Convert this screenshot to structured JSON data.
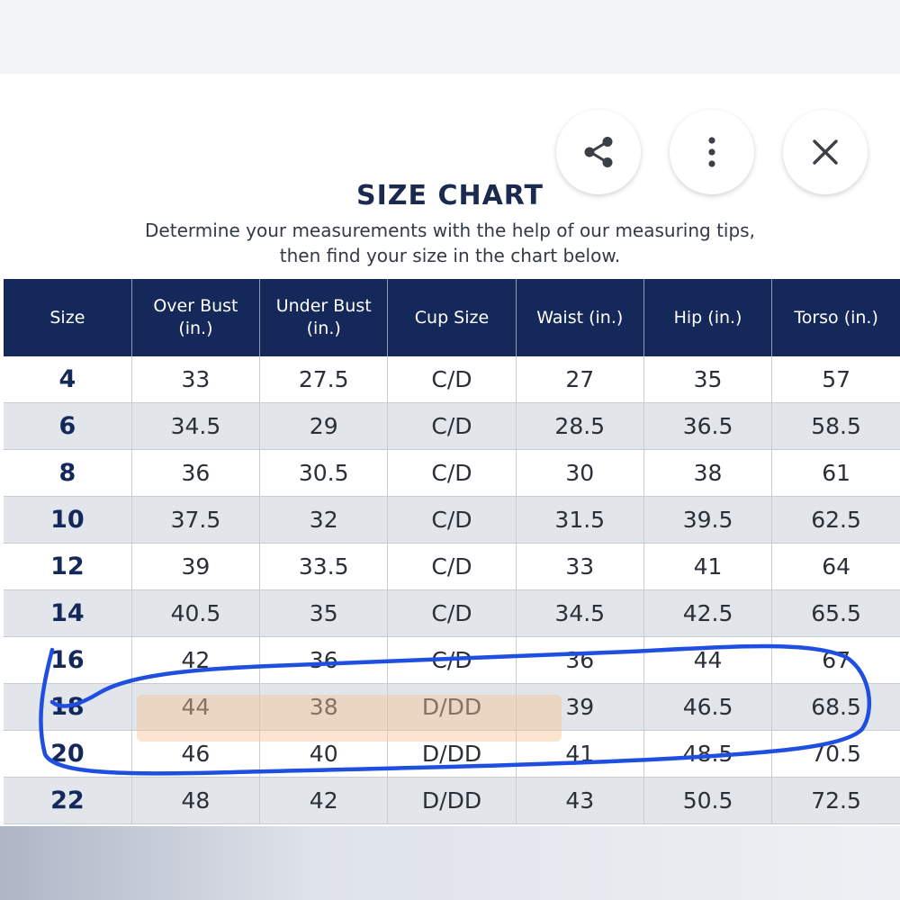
{
  "header": {
    "title": "SIZE CHART",
    "subtitle_line1": "Determine your measurements with the help of our measuring tips,",
    "subtitle_line2": "then find your size in the chart below."
  },
  "toolbar": {
    "share_icon": "share-icon",
    "more_icon": "more-vertical-icon",
    "close_icon": "close-icon"
  },
  "table": {
    "columns": [
      "Size",
      "Over Bust (in.)",
      "Under Bust (in.)",
      "Cup Size",
      "Waist (in.)",
      "Hip (in.)",
      "Torso (in.)"
    ],
    "column_lines": [
      [
        "Size",
        ""
      ],
      [
        "Over Bust",
        "(in.)"
      ],
      [
        "Under Bust",
        "(in.)"
      ],
      [
        "Cup Size",
        ""
      ],
      [
        "Waist (in.)",
        ""
      ],
      [
        "Hip (in.)",
        ""
      ],
      [
        "Torso (in.)",
        ""
      ]
    ],
    "rows": [
      [
        "4",
        "33",
        "27.5",
        "C/D",
        "27",
        "35",
        "57"
      ],
      [
        "6",
        "34.5",
        "29",
        "C/D",
        "28.5",
        "36.5",
        "58.5"
      ],
      [
        "8",
        "36",
        "30.5",
        "C/D",
        "30",
        "38",
        "61"
      ],
      [
        "10",
        "37.5",
        "32",
        "C/D",
        "31.5",
        "39.5",
        "62.5"
      ],
      [
        "12",
        "39",
        "33.5",
        "C/D",
        "33",
        "41",
        "64"
      ],
      [
        "14",
        "40.5",
        "35",
        "C/D",
        "34.5",
        "42.5",
        "65.5"
      ],
      [
        "16",
        "42",
        "36",
        "C/D",
        "36",
        "44",
        "67"
      ],
      [
        "18",
        "44",
        "38",
        "D/DD",
        "39",
        "46.5",
        "68.5"
      ],
      [
        "20",
        "46",
        "40",
        "D/DD",
        "41",
        "48.5",
        "70.5"
      ],
      [
        "22",
        "48",
        "42",
        "D/DD",
        "43",
        "50.5",
        "72.5"
      ]
    ]
  },
  "colors": {
    "header_bg": "#14295a",
    "annotation_stroke": "#1f4fe0",
    "highlight_fill": "#f6c496"
  }
}
